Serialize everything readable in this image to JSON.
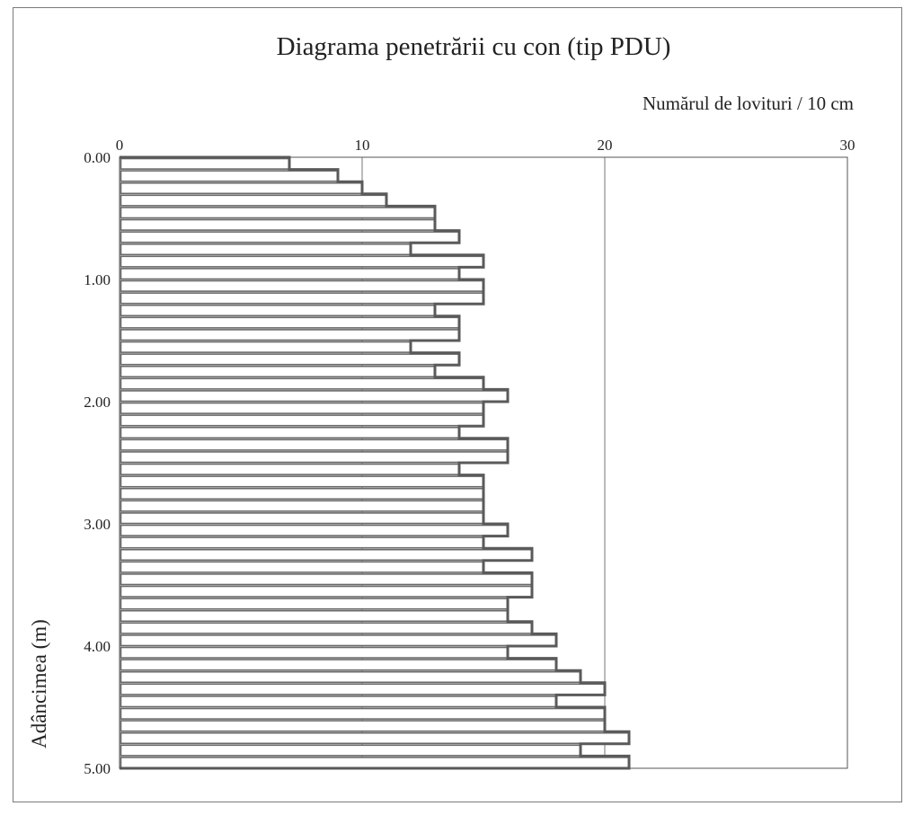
{
  "chart_data": {
    "type": "bar",
    "orientation": "horizontal",
    "title": "Diagrama penetrării cu con (tip PDU)",
    "xlabel": "Numărul de lovituri / 10 cm",
    "ylabel": "Adâncimea (m)",
    "xlim": [
      0,
      30
    ],
    "ylim": [
      0,
      5
    ],
    "x_ticks": [
      0,
      10,
      20,
      30
    ],
    "x_tick_labels": [
      "0",
      "10",
      "20",
      "30"
    ],
    "y_ticks": [
      0,
      1,
      2,
      3,
      4,
      5
    ],
    "y_tick_labels": [
      "0.00",
      "1.00",
      "2.00",
      "3.00",
      "4.00",
      "5.00"
    ],
    "x_axis_position": "top",
    "y_axis_inverted": true,
    "grid": "vertical at x ticks",
    "depth_step": 0.1,
    "depth_from": [
      0.0,
      0.1,
      0.2,
      0.3,
      0.4,
      0.5,
      0.6,
      0.7,
      0.8,
      0.9,
      1.0,
      1.1,
      1.2,
      1.3,
      1.4,
      1.5,
      1.6,
      1.7,
      1.8,
      1.9,
      2.0,
      2.1,
      2.2,
      2.3,
      2.4,
      2.5,
      2.6,
      2.7,
      2.8,
      2.9,
      3.0,
      3.1,
      3.2,
      3.3,
      3.4,
      3.5,
      3.6,
      3.7,
      3.8,
      3.9,
      4.0,
      4.1,
      4.2,
      4.3,
      4.4,
      4.5,
      4.6,
      4.7,
      4.8,
      4.9
    ],
    "values": [
      7,
      9,
      10,
      11,
      13,
      13,
      14,
      12,
      15,
      14,
      15,
      15,
      13,
      14,
      14,
      12,
      14,
      13,
      15,
      16,
      15,
      15,
      14,
      16,
      16,
      14,
      15,
      15,
      15,
      15,
      16,
      15,
      17,
      15,
      17,
      17,
      16,
      16,
      17,
      18,
      16,
      18,
      19,
      20,
      18,
      20,
      20,
      21,
      19,
      21
    ]
  }
}
